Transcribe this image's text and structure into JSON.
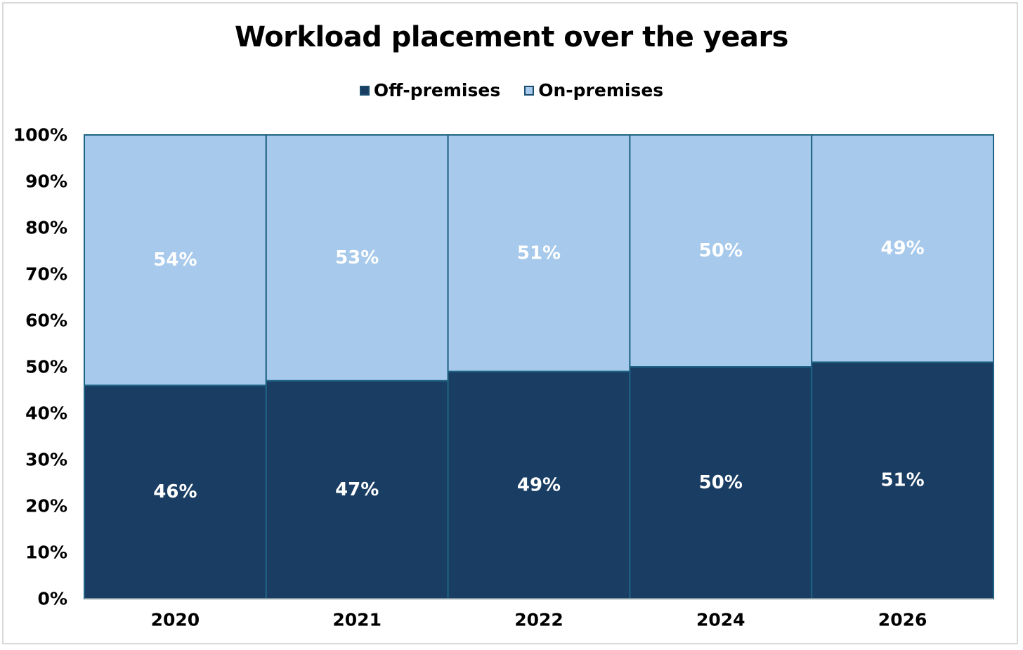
{
  "chart_data": {
    "type": "bar",
    "stacked": true,
    "title": "Workload placement over the years",
    "categories": [
      "2020",
      "2021",
      "2022",
      "2024",
      "2026"
    ],
    "series": [
      {
        "name": "Off-premises",
        "values": [
          46,
          47,
          49,
          50,
          51
        ],
        "labels": [
          "46%",
          "47%",
          "49%",
          "50%",
          "51%"
        ],
        "color": "#1a3d63"
      },
      {
        "name": "On-premises",
        "values": [
          54,
          53,
          51,
          50,
          49
        ],
        "labels": [
          "54%",
          "53%",
          "51%",
          "50%",
          "49%"
        ],
        "color": "#a7c9eb"
      }
    ],
    "ylim": [
      0,
      100
    ],
    "yticks": [
      "0%",
      "10%",
      "20%",
      "30%",
      "40%",
      "50%",
      "60%",
      "70%",
      "80%",
      "90%",
      "100%"
    ],
    "grid": false,
    "legend_position": "top",
    "bar_border_color": "#1f6485",
    "label_color": "#ffffff"
  }
}
